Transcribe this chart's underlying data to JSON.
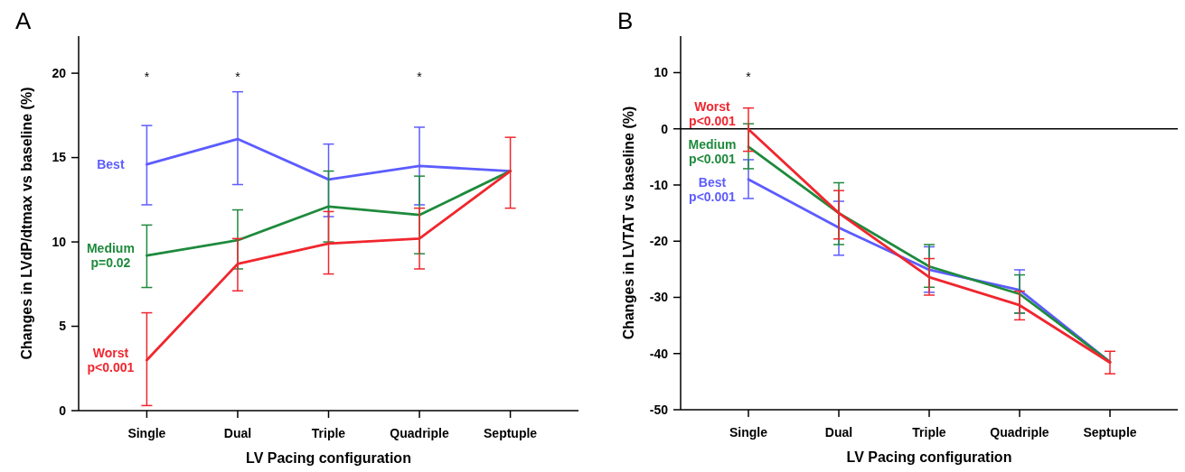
{
  "chart_data": [
    {
      "type": "line",
      "title": "A",
      "xlabel": "LV Pacing configuration",
      "ylabel": "Changes in LVdP/dtmax vs baseline (%)",
      "categories": [
        "Single",
        "Dual",
        "Triple",
        "Quadriple",
        "Septuple"
      ],
      "ylim": [
        0,
        22.2
      ],
      "yticks": [
        0,
        5,
        10,
        15,
        20
      ],
      "series": [
        {
          "name": "Best",
          "color": "#5c5cff",
          "values": [
            14.6,
            16.1,
            13.7,
            14.5,
            14.2
          ],
          "errors": [
            [
              12.2,
              16.9
            ],
            [
              13.4,
              18.9
            ],
            [
              11.5,
              15.8
            ],
            [
              12.2,
              16.8
            ],
            null
          ]
        },
        {
          "name": "Medium p=0.02",
          "color": "#1e8a3c",
          "values": [
            9.2,
            10.1,
            12.1,
            11.6,
            14.2
          ],
          "errors": [
            [
              7.3,
              11.0
            ],
            [
              8.4,
              11.9
            ],
            [
              10.0,
              14.2
            ],
            [
              9.3,
              13.9
            ],
            null
          ]
        },
        {
          "name": "Worst p<0.001",
          "color": "#f0262e",
          "values": [
            3.0,
            8.7,
            9.9,
            10.2,
            14.2
          ],
          "errors": [
            [
              0.3,
              5.8
            ],
            [
              7.1,
              10.2
            ],
            [
              8.1,
              11.8
            ],
            [
              8.4,
              12.0
            ],
            [
              12.0,
              16.2
            ]
          ]
        }
      ],
      "annotations": [
        "*",
        "*",
        "*"
      ]
    },
    {
      "type": "line",
      "title": "B",
      "xlabel": "LV Pacing configuration",
      "ylabel": "Changes in LVTAT vs baseline (%)",
      "categories": [
        "Single",
        "Dual",
        "Triple",
        "Quadriple",
        "Septuple"
      ],
      "ylim": [
        -50,
        16.5
      ],
      "yticks": [
        -50,
        -40,
        -30,
        -20,
        -10,
        0,
        10
      ],
      "series": [
        {
          "name": "Best p<0.001",
          "color": "#5c5cff",
          "values": [
            -9.0,
            -17.6,
            -25.1,
            -28.7,
            -41.5
          ],
          "errors": [
            [
              -12.4,
              -5.5
            ],
            [
              -22.5,
              -12.9
            ],
            [
              -29.1,
              -21.0
            ],
            [
              -32.8,
              -25.1
            ],
            null
          ]
        },
        {
          "name": "Medium p<0.001",
          "color": "#1e8a3c",
          "values": [
            -3.2,
            -15.0,
            -24.5,
            -29.4,
            -41.5
          ],
          "errors": [
            [
              -7.1,
              0.9
            ],
            [
              -20.6,
              -9.6
            ],
            [
              -28.2,
              -20.6
            ],
            [
              -32.8,
              -26.0
            ],
            null
          ]
        },
        {
          "name": "Worst p<0.001",
          "color": "#f0262e",
          "values": [
            -0.1,
            -15.0,
            -26.4,
            -31.4,
            -41.6
          ],
          "errors": [
            [
              -4.0,
              3.7
            ],
            [
              -19.6,
              -11.0
            ],
            [
              -29.6,
              -23.1
            ],
            [
              -34.0,
              -28.9
            ],
            [
              -43.6,
              -39.6
            ]
          ]
        }
      ],
      "ref_lines": [
        {
          "axis": "y",
          "value": 0,
          "color": "#000000"
        }
      ],
      "annotations": [
        "*"
      ]
    }
  ]
}
